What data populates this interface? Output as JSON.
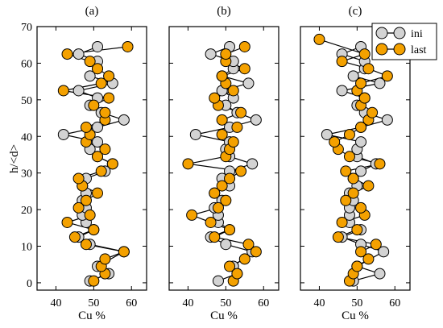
{
  "chart_data": {
    "type": "line",
    "ylabel": "h/<d>",
    "ylim": [
      -2,
      70
    ],
    "yticks": [
      0,
      10,
      20,
      30,
      40,
      50,
      60,
      70
    ],
    "xlim": [
      35,
      64
    ],
    "xticks": [
      40,
      50,
      60
    ],
    "legend": {
      "placement": "top-right",
      "entries": [
        "ini",
        "last"
      ]
    },
    "colors": {
      "ini": "#d3d3d3",
      "last": "#f4a100"
    },
    "panels": [
      {
        "title": "(a)",
        "xlabel": "Cu %",
        "series": [
          {
            "name": "ini",
            "points": [
              [
                49,
                0.5
              ],
              [
                54,
                2.5
              ],
              [
                51,
                4.5
              ],
              [
                58,
                8.5
              ],
              [
                49,
                10.5
              ],
              [
                46,
                12.5
              ],
              [
                50,
                14.5
              ],
              [
                48,
                16.5
              ],
              [
                47,
                18.5
              ],
              [
                48,
                20.5
              ],
              [
                47,
                22.5
              ],
              [
                48,
                24.5
              ],
              [
                47,
                26.5
              ],
              [
                48,
                28.5
              ],
              [
                53,
                30.5
              ],
              [
                55,
                32.5
              ],
              [
                51,
                34.5
              ],
              [
                49,
                36.5
              ],
              [
                51,
                38.5
              ],
              [
                42,
                40.5
              ],
              [
                51,
                42.5
              ],
              [
                58,
                44.5
              ],
              [
                52,
                46.5
              ],
              [
                49,
                48.5
              ],
              [
                51,
                50.5
              ],
              [
                46,
                52.5
              ],
              [
                55,
                54.5
              ],
              [
                49,
                56.5
              ],
              [
                51,
                58.5
              ],
              [
                51,
                60.5
              ],
              [
                46,
                62.5
              ],
              [
                51,
                64.5
              ]
            ]
          },
          {
            "name": "last",
            "points": [
              [
                50,
                0.5
              ],
              [
                53,
                2.5
              ],
              [
                52,
                4.5
              ],
              [
                53,
                6.5
              ],
              [
                58,
                8.5
              ],
              [
                48,
                10.5
              ],
              [
                45,
                12.5
              ],
              [
                50,
                14.5
              ],
              [
                43,
                16.5
              ],
              [
                49,
                18.5
              ],
              [
                46,
                20.5
              ],
              [
                48,
                22.5
              ],
              [
                51,
                24.5
              ],
              [
                47,
                26.5
              ],
              [
                46,
                28.5
              ],
              [
                52,
                30.5
              ],
              [
                55,
                32.5
              ],
              [
                51,
                34.5
              ],
              [
                53,
                36.5
              ],
              [
                48,
                38.5
              ],
              [
                49,
                40.5
              ],
              [
                48,
                42.5
              ],
              [
                53,
                44.5
              ],
              [
                53,
                46.5
              ],
              [
                50,
                48.5
              ],
              [
                54,
                50.5
              ],
              [
                42,
                52.5
              ],
              [
                52,
                54.5
              ],
              [
                54,
                56.5
              ],
              [
                51,
                58.5
              ],
              [
                49,
                60.5
              ],
              [
                43,
                62.5
              ],
              [
                59,
                64.5
              ]
            ]
          }
        ]
      },
      {
        "title": "(b)",
        "xlabel": "Cu %",
        "series": [
          {
            "name": "ini",
            "points": [
              [
                48,
                0.5
              ],
              [
                53,
                2.5
              ],
              [
                52,
                4.5
              ],
              [
                57,
                8.5
              ],
              [
                50,
                10.5
              ],
              [
                46,
                12.5
              ],
              [
                51,
                14.5
              ],
              [
                48,
                16.5
              ],
              [
                48,
                18.5
              ],
              [
                47,
                20.5
              ],
              [
                49,
                22.5
              ],
              [
                47,
                24.5
              ],
              [
                51,
                26.5
              ],
              [
                49,
                28.5
              ],
              [
                51,
                30.5
              ],
              [
                57,
                32.5
              ],
              [
                51,
                34.5
              ],
              [
                50,
                36.5
              ],
              [
                51,
                38.5
              ],
              [
                42,
                40.5
              ],
              [
                51,
                42.5
              ],
              [
                58,
                44.5
              ],
              [
                53,
                46.5
              ],
              [
                50,
                48.5
              ],
              [
                52,
                50.5
              ],
              [
                49,
                52.5
              ],
              [
                56,
                54.5
              ],
              [
                49,
                56.5
              ],
              [
                52,
                58.5
              ],
              [
                52,
                60.5
              ],
              [
                46,
                62.5
              ],
              [
                51,
                64.5
              ]
            ]
          },
          {
            "name": "last",
            "points": [
              [
                52,
                0.5
              ],
              [
                53,
                2.5
              ],
              [
                51,
                4.5
              ],
              [
                55,
                6.5
              ],
              [
                58,
                8.5
              ],
              [
                56,
                10.5
              ],
              [
                47,
                12.5
              ],
              [
                51,
                14.5
              ],
              [
                46,
                16.5
              ],
              [
                41,
                18.5
              ],
              [
                48,
                20.5
              ],
              [
                50,
                22.5
              ],
              [
                47,
                24.5
              ],
              [
                49,
                26.5
              ],
              [
                51,
                28.5
              ],
              [
                54,
                30.5
              ],
              [
                40,
                32.5
              ],
              [
                50,
                34.5
              ],
              [
                51,
                36.5
              ],
              [
                52,
                38.5
              ],
              [
                49,
                40.5
              ],
              [
                53,
                42.5
              ],
              [
                49,
                44.5
              ],
              [
                54,
                46.5
              ],
              [
                48,
                48.5
              ],
              [
                47,
                50.5
              ],
              [
                52,
                52.5
              ],
              [
                50,
                54.5
              ],
              [
                49,
                56.5
              ],
              [
                55,
                58.5
              ],
              [
                50,
                60.5
              ],
              [
                50,
                62.5
              ],
              [
                55,
                64.5
              ]
            ]
          }
        ]
      },
      {
        "title": "(c)",
        "xlabel": "Cu %",
        "series": [
          {
            "name": "ini",
            "points": [
              [
                49,
                0.5
              ],
              [
                56,
                2.5
              ],
              [
                50,
                4.5
              ],
              [
                57,
                8.5
              ],
              [
                51,
                10.5
              ],
              [
                46,
                12.5
              ],
              [
                51,
                14.5
              ],
              [
                48,
                16.5
              ],
              [
                48,
                18.5
              ],
              [
                48,
                20.5
              ],
              [
                49,
                22.5
              ],
              [
                48,
                24.5
              ],
              [
                50,
                26.5
              ],
              [
                49,
                28.5
              ],
              [
                51,
                30.5
              ],
              [
                55,
                32.5
              ],
              [
                50,
                34.5
              ],
              [
                50,
                36.5
              ],
              [
                51,
                38.5
              ],
              [
                42,
                40.5
              ],
              [
                51,
                42.5
              ],
              [
                58,
                44.5
              ],
              [
                52,
                46.5
              ],
              [
                50,
                48.5
              ],
              [
                52,
                50.5
              ],
              [
                46,
                52.5
              ],
              [
                56,
                54.5
              ],
              [
                49,
                56.5
              ],
              [
                52,
                58.5
              ],
              [
                52,
                60.5
              ],
              [
                46,
                62.5
              ],
              [
                51,
                64.5
              ]
            ]
          },
          {
            "name": "last",
            "points": [
              [
                48,
                0.5
              ],
              [
                49,
                2.5
              ],
              [
                50,
                4.5
              ],
              [
                53,
                6.5
              ],
              [
                51,
                8.5
              ],
              [
                55,
                10.5
              ],
              [
                45,
                12.5
              ],
              [
                50,
                14.5
              ],
              [
                46,
                16.5
              ],
              [
                52,
                18.5
              ],
              [
                51,
                20.5
              ],
              [
                47,
                22.5
              ],
              [
                49,
                24.5
              ],
              [
                53,
                26.5
              ],
              [
                49,
                28.5
              ],
              [
                47,
                30.5
              ],
              [
                56,
                32.5
              ],
              [
                48,
                34.5
              ],
              [
                45,
                36.5
              ],
              [
                44,
                38.5
              ],
              [
                48,
                40.5
              ],
              [
                51,
                42.5
              ],
              [
                53,
                44.5
              ],
              [
                54,
                46.5
              ],
              [
                51,
                48.5
              ],
              [
                52,
                50.5
              ],
              [
                50,
                52.5
              ],
              [
                51,
                54.5
              ],
              [
                58,
                56.5
              ],
              [
                53,
                58.5
              ],
              [
                46,
                60.5
              ],
              [
                52,
                62.5
              ],
              [
                40,
                66.5
              ]
            ]
          }
        ]
      }
    ]
  }
}
